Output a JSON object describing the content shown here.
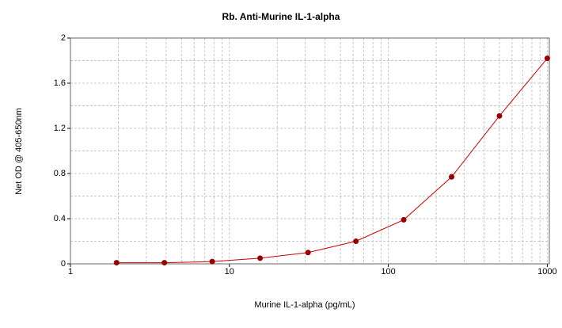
{
  "chart_data": {
    "type": "scatter",
    "title": "Rb. Anti-Murine IL-1-alpha",
    "x_label": "Murine IL-1-alpha (pg/mL)",
    "y_label": "Net OD @ 405-650nm",
    "x": [
      1.95,
      3.9,
      7.8,
      15.6,
      31.25,
      62.5,
      125,
      250,
      500,
      1000
    ],
    "series": [
      {
        "color": "#990000",
        "line_color": "#cc0000",
        "values": [
          0.01,
          0.01,
          0.02,
          0.05,
          0.1,
          0.2,
          0.39,
          0.77,
          1.31,
          1.82
        ]
      }
    ],
    "xlim": [
      1,
      1030
    ],
    "xticks": [
      1,
      10,
      100,
      1000
    ],
    "x_log": true,
    "ylim": [
      0,
      2
    ],
    "yticks": [
      0,
      0.4,
      0.8,
      1.2,
      1.6,
      2
    ],
    "grid": true
  }
}
